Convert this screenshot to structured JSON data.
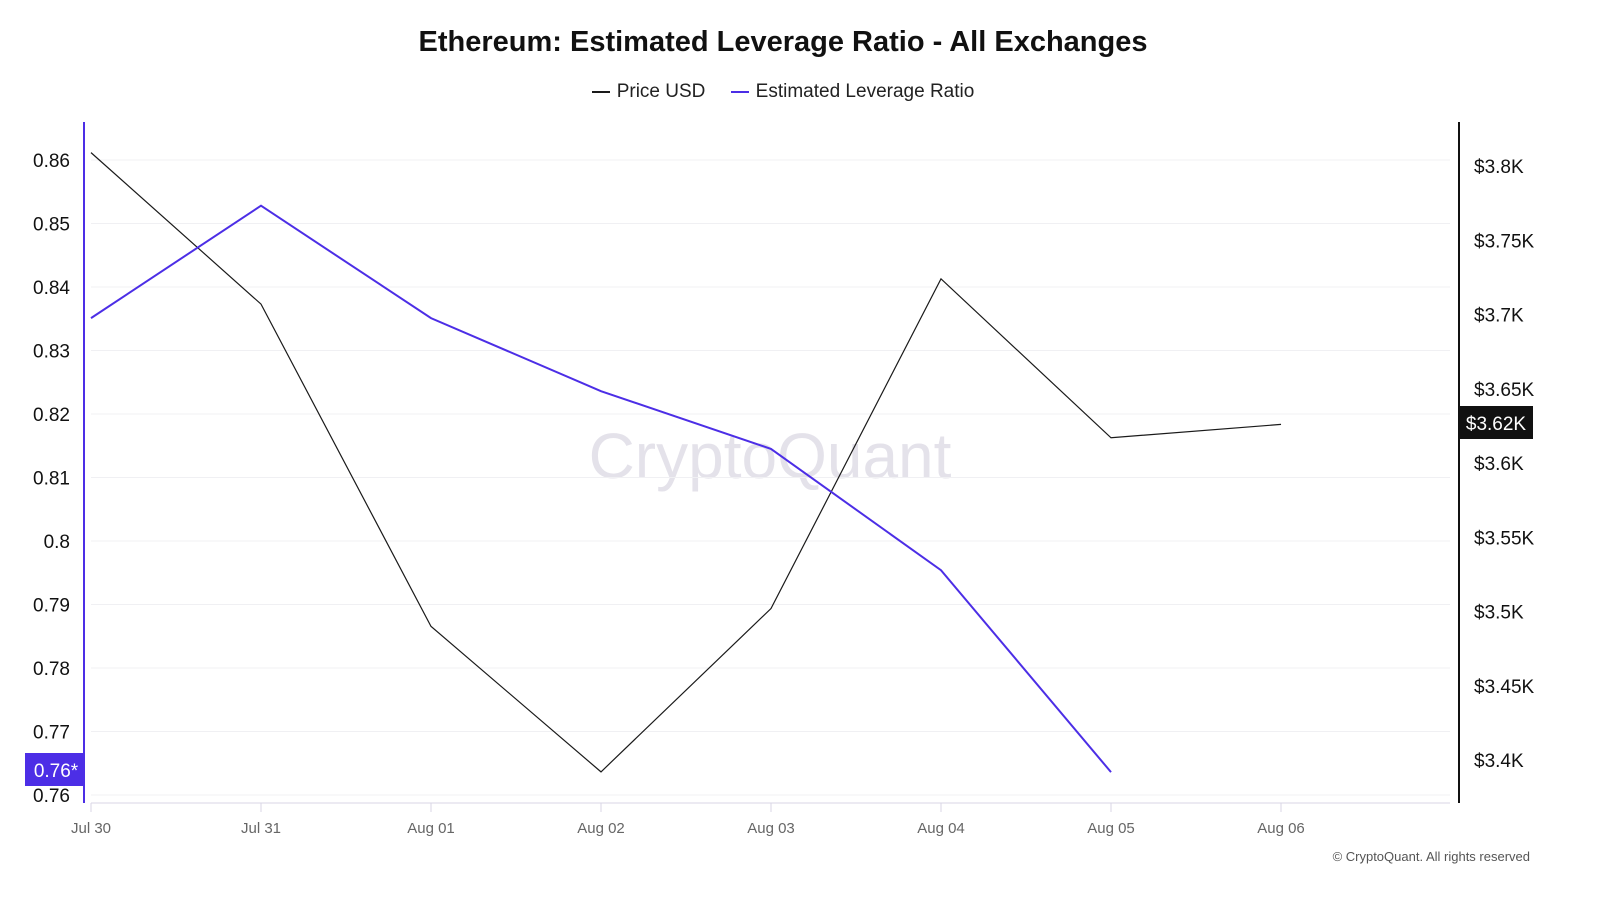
{
  "chart_data": {
    "type": "line",
    "title": "Ethereum: Estimated Leverage Ratio - All Exchanges",
    "categories": [
      "Jul 30",
      "Jul 31",
      "Aug 01",
      "Aug 02",
      "Aug 03",
      "Aug 04",
      "Aug 05",
      "Aug 06"
    ],
    "series": [
      {
        "name": "Price USD",
        "axis": "right",
        "color": "#1a1a1a",
        "values": [
          3809,
          3707,
          3490,
          3392,
          3502,
          3724,
          3617,
          3626
        ]
      },
      {
        "name": "Estimated Leverage Ratio",
        "axis": "left",
        "color": "#4c2ee6",
        "values": [
          0.8351,
          0.8528,
          0.8351,
          0.8236,
          0.8145,
          0.7954,
          0.7636,
          null
        ]
      }
    ],
    "left_axis": {
      "ylim": [
        0.76,
        0.86
      ],
      "ticks": [
        "0.86",
        "0.85",
        "0.84",
        "0.83",
        "0.82",
        "0.81",
        "0.8",
        "0.79",
        "0.78",
        "0.77",
        "0.76"
      ],
      "current_label": "0.76*"
    },
    "right_axis": {
      "ylim": [
        3400,
        3800
      ],
      "ticks": [
        "$3.8K",
        "$3.75K",
        "$3.7K",
        "$3.65K",
        "$3.6K",
        "$3.55K",
        "$3.5K",
        "$3.45K",
        "$3.4K"
      ],
      "current_label": "$3.62K"
    },
    "grid": true,
    "legend_position": "top-center",
    "watermark": "CryptoQuant"
  },
  "footer": "© CryptoQuant. All rights reserved"
}
